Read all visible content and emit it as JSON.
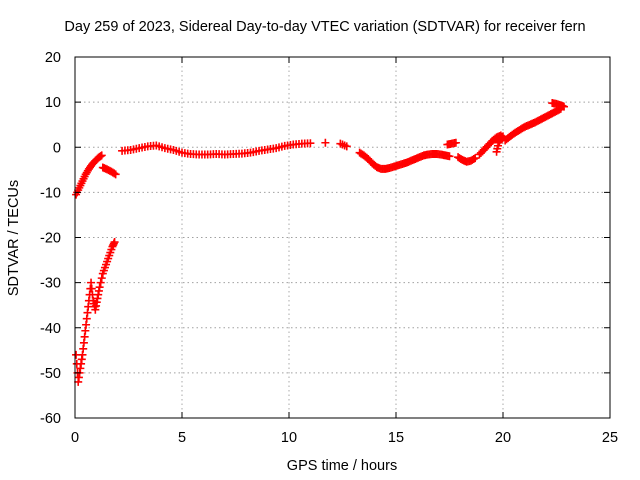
{
  "chart_data": {
    "type": "scatter",
    "title": "Day 259 of 2023, Sidereal Day-to-day VTEC variation (SDTVAR) for receiver fern",
    "xlabel": "GPS time / hours",
    "ylabel": "SDTVAR / TECUs",
    "xlim": [
      0,
      25
    ],
    "ylim": [
      -60,
      20
    ],
    "xticks": [
      0,
      5,
      10,
      15,
      20,
      25
    ],
    "yticks": [
      -60,
      -50,
      -40,
      -30,
      -20,
      -10,
      0,
      10,
      20
    ],
    "grid": true,
    "marker": "plus",
    "series_color": "#ff0000",
    "series": [
      {
        "name": "SDTVAR",
        "segments": [
          {
            "points": [
              [
                0.05,
                -10.5
              ],
              [
                0.2,
                -9.0
              ],
              [
                0.35,
                -7.5
              ],
              [
                0.5,
                -6.0
              ],
              [
                0.65,
                -4.8
              ],
              [
                0.8,
                -3.8
              ],
              [
                0.95,
                -3.0
              ],
              [
                1.1,
                -2.3
              ],
              [
                1.25,
                -1.8
              ]
            ]
          },
          {
            "points": [
              [
                1.3,
                -4.5
              ],
              [
                1.5,
                -4.9
              ],
              [
                1.7,
                -5.4
              ],
              [
                1.9,
                -6.0
              ]
            ]
          },
          {
            "points": [
              [
                0.05,
                -46.0
              ],
              [
                0.15,
                -52.0
              ],
              [
                0.25,
                -49.0
              ],
              [
                0.35,
                -46.0
              ],
              [
                0.45,
                -42.0
              ],
              [
                0.55,
                -38.0
              ],
              [
                0.65,
                -34.0
              ],
              [
                0.75,
                -30.0
              ],
              [
                0.85,
                -34.0
              ],
              [
                0.95,
                -36.0
              ],
              [
                1.05,
                -33.5
              ],
              [
                1.15,
                -31.0
              ],
              [
                1.3,
                -28.0
              ],
              [
                1.45,
                -26.0
              ],
              [
                1.6,
                -24.0
              ],
              [
                1.75,
                -22.0
              ],
              [
                1.85,
                -21.0
              ]
            ]
          },
          {
            "points": [
              [
                2.2,
                -0.8
              ],
              [
                2.6,
                -0.6
              ],
              [
                3.0,
                -0.2
              ],
              [
                3.4,
                0.2
              ],
              [
                3.8,
                0.4
              ],
              [
                4.2,
                -0.2
              ],
              [
                4.6,
                -0.6
              ],
              [
                5.0,
                -1.2
              ],
              [
                5.4,
                -1.5
              ],
              [
                5.8,
                -1.6
              ],
              [
                6.2,
                -1.6
              ],
              [
                6.6,
                -1.5
              ],
              [
                7.0,
                -1.6
              ],
              [
                7.4,
                -1.5
              ],
              [
                7.8,
                -1.4
              ],
              [
                8.2,
                -1.2
              ],
              [
                8.6,
                -0.8
              ],
              [
                9.0,
                -0.5
              ],
              [
                9.4,
                -0.2
              ],
              [
                9.8,
                0.3
              ],
              [
                10.2,
                0.6
              ],
              [
                10.6,
                0.8
              ],
              [
                11.0,
                0.9
              ]
            ]
          },
          {
            "points": [
              [
                11.7,
                1.0
              ]
            ]
          },
          {
            "points": [
              [
                12.4,
                0.8
              ],
              [
                12.7,
                0.2
              ]
            ]
          },
          {
            "points": [
              [
                13.3,
                -1.2
              ],
              [
                13.5,
                -1.8
              ],
              [
                13.7,
                -2.6
              ],
              [
                13.9,
                -3.6
              ],
              [
                14.1,
                -4.4
              ],
              [
                14.3,
                -4.8
              ],
              [
                14.5,
                -4.8
              ],
              [
                14.7,
                -4.6
              ],
              [
                14.9,
                -4.3
              ],
              [
                15.1,
                -4.0
              ],
              [
                15.3,
                -3.7
              ],
              [
                15.5,
                -3.4
              ],
              [
                15.7,
                -3.0
              ],
              [
                15.9,
                -2.6
              ],
              [
                16.1,
                -2.2
              ],
              [
                16.3,
                -1.8
              ],
              [
                16.5,
                -1.6
              ],
              [
                16.7,
                -1.5
              ],
              [
                16.9,
                -1.5
              ],
              [
                17.1,
                -1.6
              ],
              [
                17.3,
                -1.8
              ],
              [
                17.5,
                -2.0
              ]
            ]
          },
          {
            "points": [
              [
                17.4,
                0.6
              ],
              [
                17.6,
                0.8
              ],
              [
                17.8,
                1.0
              ]
            ]
          },
          {
            "points": [
              [
                17.9,
                -2.2
              ],
              [
                18.1,
                -2.8
              ],
              [
                18.3,
                -3.2
              ],
              [
                18.5,
                -3.0
              ],
              [
                18.7,
                -2.4
              ]
            ]
          },
          {
            "points": [
              [
                18.9,
                -1.6
              ],
              [
                19.1,
                -0.6
              ],
              [
                19.3,
                0.4
              ],
              [
                19.5,
                1.4
              ],
              [
                19.7,
                2.2
              ],
              [
                19.9,
                2.6
              ]
            ]
          },
          {
            "points": [
              [
                19.7,
                -1.0
              ],
              [
                19.8,
                1.0
              ],
              [
                19.9,
                2.0
              ],
              [
                20.0,
                2.4
              ]
            ]
          },
          {
            "points": [
              [
                20.1,
                1.5
              ],
              [
                20.3,
                2.3
              ],
              [
                20.5,
                3.0
              ],
              [
                20.7,
                3.6
              ],
              [
                20.9,
                4.2
              ],
              [
                21.1,
                4.7
              ],
              [
                21.3,
                5.1
              ],
              [
                21.5,
                5.5
              ],
              [
                21.7,
                6.0
              ],
              [
                21.9,
                6.5
              ],
              [
                22.1,
                7.0
              ],
              [
                22.3,
                7.5
              ],
              [
                22.5,
                8.0
              ],
              [
                22.7,
                8.5
              ]
            ]
          },
          {
            "points": [
              [
                22.3,
                9.8
              ],
              [
                22.5,
                9.6
              ],
              [
                22.7,
                9.3
              ],
              [
                22.85,
                9.0
              ]
            ]
          }
        ]
      }
    ]
  }
}
